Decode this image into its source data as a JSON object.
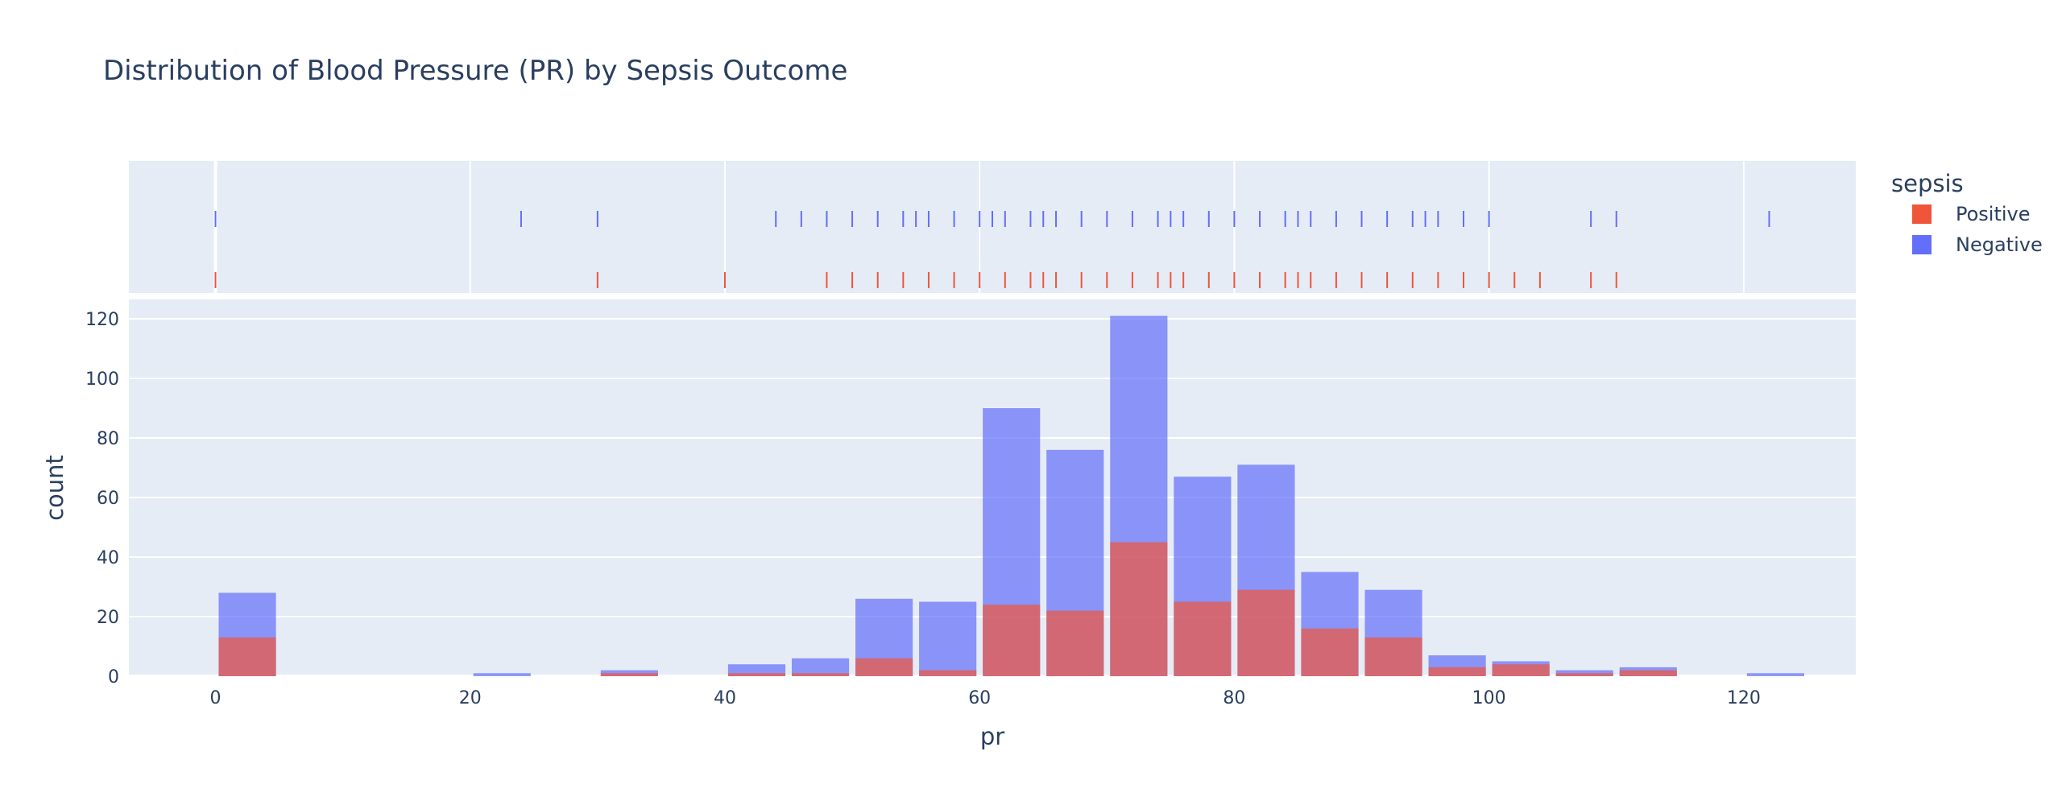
{
  "chart_data": {
    "type": "bar",
    "title": "Distribution of Blood Pressure (PR) by Sepsis Outcome",
    "xlabel": "pr",
    "ylabel": "count",
    "xlim": [
      -6.8,
      128.8
    ],
    "ylim": [
      0,
      126.5
    ],
    "x_ticks": [
      0,
      20,
      40,
      60,
      80,
      100,
      120
    ],
    "y_ticks": [
      0,
      20,
      40,
      60,
      80,
      100,
      120
    ],
    "bin_width": 5,
    "barmode": "overlay",
    "grid": true,
    "legend": {
      "title": "sepsis",
      "position": "right"
    },
    "series": [
      {
        "name": "Positive",
        "color": "#EF553B",
        "bins": [
          {
            "x0": 0,
            "x1": 5,
            "count": 13
          },
          {
            "x0": 30,
            "x1": 35,
            "count": 1
          },
          {
            "x0": 40,
            "x1": 45,
            "count": 1
          },
          {
            "x0": 45,
            "x1": 50,
            "count": 1
          },
          {
            "x0": 50,
            "x1": 55,
            "count": 6
          },
          {
            "x0": 55,
            "x1": 60,
            "count": 2
          },
          {
            "x0": 60,
            "x1": 65,
            "count": 24
          },
          {
            "x0": 65,
            "x1": 70,
            "count": 22
          },
          {
            "x0": 70,
            "x1": 75,
            "count": 45
          },
          {
            "x0": 75,
            "x1": 80,
            "count": 25
          },
          {
            "x0": 80,
            "x1": 85,
            "count": 29
          },
          {
            "x0": 85,
            "x1": 90,
            "count": 16
          },
          {
            "x0": 90,
            "x1": 95,
            "count": 13
          },
          {
            "x0": 95,
            "x1": 100,
            "count": 3
          },
          {
            "x0": 100,
            "x1": 105,
            "count": 4
          },
          {
            "x0": 105,
            "x1": 110,
            "count": 1
          },
          {
            "x0": 110,
            "x1": 115,
            "count": 2
          }
        ],
        "rug": [
          0,
          30,
          40,
          48,
          50,
          52,
          54,
          56,
          58,
          60,
          62,
          64,
          65,
          66,
          68,
          70,
          72,
          74,
          75,
          76,
          78,
          80,
          82,
          84,
          85,
          86,
          88,
          90,
          92,
          94,
          96,
          98,
          100,
          102,
          104,
          108,
          110
        ]
      },
      {
        "name": "Negative",
        "color": "#636EFA",
        "bins": [
          {
            "x0": 0,
            "x1": 5,
            "count": 28
          },
          {
            "x0": 20,
            "x1": 25,
            "count": 1
          },
          {
            "x0": 30,
            "x1": 35,
            "count": 2
          },
          {
            "x0": 40,
            "x1": 45,
            "count": 4
          },
          {
            "x0": 45,
            "x1": 50,
            "count": 6
          },
          {
            "x0": 50,
            "x1": 55,
            "count": 26
          },
          {
            "x0": 55,
            "x1": 60,
            "count": 25
          },
          {
            "x0": 60,
            "x1": 65,
            "count": 90
          },
          {
            "x0": 65,
            "x1": 70,
            "count": 76
          },
          {
            "x0": 70,
            "x1": 75,
            "count": 121
          },
          {
            "x0": 75,
            "x1": 80,
            "count": 67
          },
          {
            "x0": 80,
            "x1": 85,
            "count": 71
          },
          {
            "x0": 85,
            "x1": 90,
            "count": 35
          },
          {
            "x0": 90,
            "x1": 95,
            "count": 29
          },
          {
            "x0": 95,
            "x1": 100,
            "count": 7
          },
          {
            "x0": 100,
            "x1": 105,
            "count": 5
          },
          {
            "x0": 105,
            "x1": 110,
            "count": 2
          },
          {
            "x0": 110,
            "x1": 115,
            "count": 3
          },
          {
            "x0": 120,
            "x1": 125,
            "count": 1
          }
        ],
        "rug": [
          0,
          24,
          30,
          44,
          46,
          48,
          50,
          52,
          54,
          55,
          56,
          58,
          60,
          61,
          62,
          64,
          65,
          66,
          68,
          70,
          72,
          74,
          75,
          76,
          78,
          80,
          82,
          84,
          85,
          86,
          88,
          90,
          92,
          94,
          95,
          96,
          98,
          100,
          108,
          110,
          122
        ]
      }
    ]
  }
}
